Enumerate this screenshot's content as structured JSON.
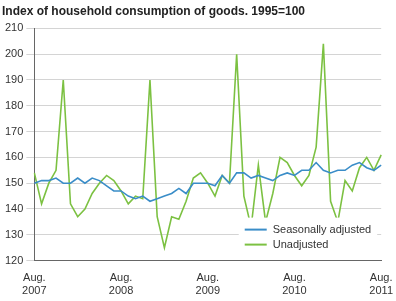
{
  "chart_data": {
    "type": "line",
    "title": "Index of household consumption of goods. 1995=100",
    "categories": [
      "Aug. 2007",
      null,
      null,
      null,
      null,
      null,
      null,
      null,
      null,
      null,
      null,
      null,
      "Aug. 2008",
      null,
      null,
      null,
      null,
      null,
      null,
      null,
      null,
      null,
      null,
      null,
      "Aug. 2009",
      null,
      null,
      null,
      null,
      null,
      null,
      null,
      null,
      null,
      null,
      null,
      "Aug. 2010",
      null,
      null,
      null,
      null,
      null,
      null,
      null,
      null,
      null,
      null,
      null,
      "Aug. 2011"
    ],
    "series": [
      {
        "name": "Seasonally adjusted",
        "color": "#3a8dc8",
        "values": [
          150,
          151,
          151,
          152,
          150,
          150,
          152,
          150,
          152,
          151,
          149,
          147,
          147,
          145,
          144,
          145,
          143,
          144,
          145,
          146,
          148,
          146,
          150,
          150,
          150,
          149,
          153,
          150,
          154,
          154,
          152,
          153,
          152,
          151,
          153,
          154,
          153,
          155,
          155,
          158,
          155,
          154,
          155,
          155,
          157,
          158,
          156,
          155,
          157
        ]
      },
      {
        "name": "Unadjusted",
        "color": "#7cc142",
        "values": [
          154,
          142,
          150,
          155,
          190,
          142,
          137,
          140,
          146,
          150,
          153,
          151,
          147,
          142,
          145,
          144,
          190,
          137,
          125,
          137,
          136,
          143,
          152,
          154,
          150,
          145,
          153,
          150,
          200,
          145,
          133,
          157,
          135,
          146,
          160,
          158,
          153,
          149,
          153,
          164,
          204,
          143,
          135,
          151,
          147,
          156,
          160,
          155,
          161
        ]
      }
    ],
    "ylim": [
      120,
      210
    ],
    "yticks": [
      120,
      130,
      140,
      150,
      160,
      170,
      180,
      190,
      200,
      210
    ],
    "grid": true,
    "legend": "lower right"
  }
}
